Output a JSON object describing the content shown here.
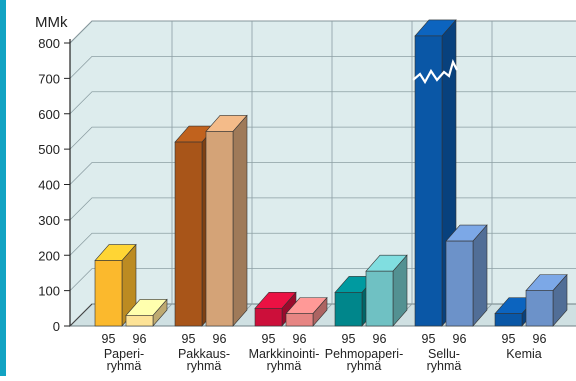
{
  "colors": {
    "accent": "#12a3c3",
    "wall": "#ddeced",
    "grid": "#8c9ea3"
  },
  "chart_data": {
    "type": "bar",
    "unit_label": "MMk",
    "ylim": [
      0,
      800
    ],
    "yticks": [
      "0",
      "100",
      "200",
      "300",
      "400",
      "500",
      "600",
      "700",
      "800"
    ],
    "series_labels": [
      "95",
      "96"
    ],
    "groups": [
      {
        "name_lines": [
          "Paperi-",
          "ryhmä"
        ],
        "values": [
          185,
          30
        ],
        "colors": [
          "#fbb92d",
          "#fde397"
        ]
      },
      {
        "name_lines": [
          "Pakkaus-",
          "ryhmä"
        ],
        "values": [
          520,
          550
        ],
        "colors": [
          "#a85519",
          "#d4a377"
        ]
      },
      {
        "name_lines": [
          "Markkinointi-",
          "ryhmä"
        ],
        "values": [
          50,
          35
        ],
        "colors": [
          "#cc0f3a",
          "#e68583"
        ]
      },
      {
        "name_lines": [
          "Pehmopaperi-",
          "ryhmä"
        ],
        "values": [
          95,
          155
        ],
        "colors": [
          "#00868b",
          "#6fc1c3"
        ]
      },
      {
        "name_lines": [
          "Sellu-",
          "ryhmä"
        ],
        "values": [
          820,
          240
        ],
        "colors": [
          "#0a57a6",
          "#6c92c9"
        ],
        "axis_break": true
      },
      {
        "name_lines": [
          "Kemia"
        ],
        "values": [
          35,
          100
        ],
        "colors": [
          "#0a57a6",
          "#6c92c9"
        ]
      }
    ],
    "grid": true
  }
}
